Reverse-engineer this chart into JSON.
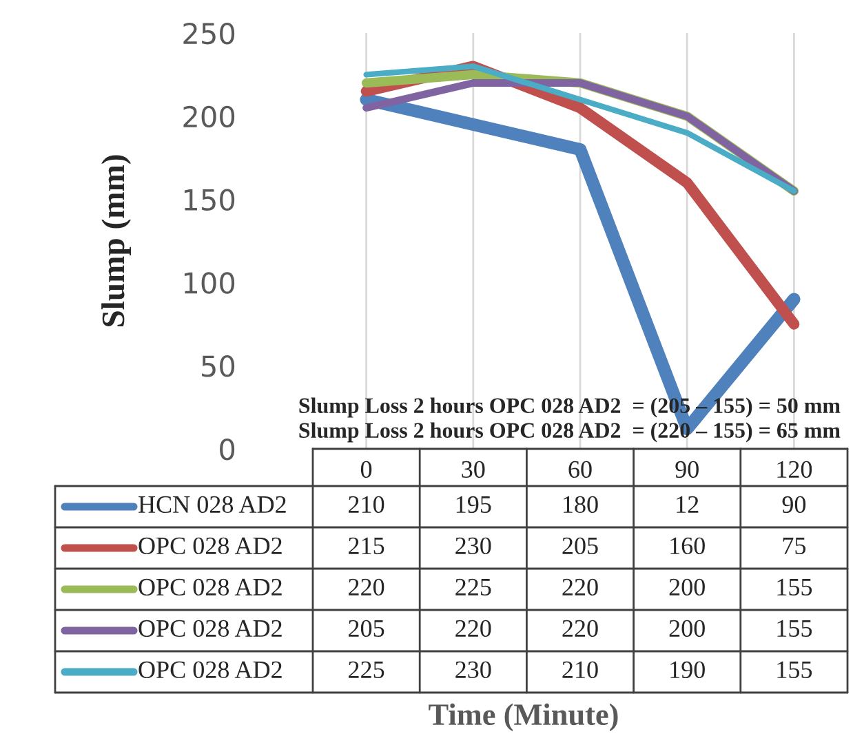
{
  "chart_data": {
    "type": "line",
    "ylabel": "Slump (mm)",
    "categories": [
      "0",
      "30",
      "60",
      "90",
      "120"
    ],
    "series": [
      {
        "name": "HCN 028 AD2",
        "color": "#4f81bd",
        "values": [
          210,
          195,
          180,
          12,
          90
        ]
      },
      {
        "name": "OPC 028 AD2",
        "color": "#c0504d",
        "values": [
          215,
          230,
          205,
          160,
          75
        ]
      },
      {
        "name": "OPC 028 AD2",
        "color": "#9bbb59",
        "values": [
          220,
          225,
          220,
          200,
          155
        ]
      },
      {
        "name": "OPC 028 AD2",
        "color": "#8064a2",
        "values": [
          205,
          220,
          220,
          200,
          155
        ]
      },
      {
        "name": "OPC 028 AD2",
        "color": "#4bacc6",
        "values": [
          225,
          230,
          210,
          190,
          155
        ]
      }
    ],
    "ylim": [
      0,
      250
    ],
    "yticks": [
      0,
      50,
      100,
      150,
      200,
      250
    ],
    "grid": "x",
    "legend": "bottom",
    "data_labels": true,
    "marker": "none",
    "line_style": "solid",
    "annotations": [
      "Slump Loss 2 hours OPC 028 AD2  = (205 – 155) = 50 mm",
      "Slump Loss 2 hours OPC 028 AD2  = (220 – 155) = 65 mm",
      "Time (Minute)"
    ]
  }
}
